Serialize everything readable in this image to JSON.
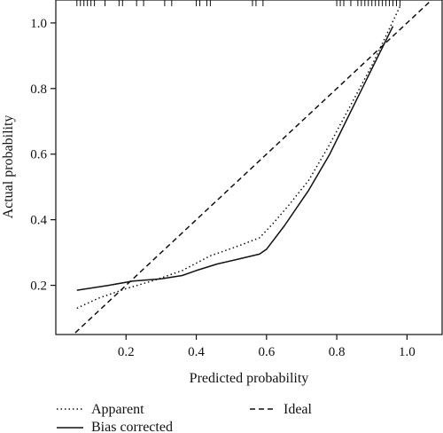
{
  "chart_data": {
    "type": "line",
    "title": "",
    "xlabel": "Predicted probability",
    "ylabel": "Actual probability",
    "xlim": [
      0.0,
      1.1
    ],
    "ylim": [
      0.05,
      1.07
    ],
    "xticks": [
      0.2,
      0.4,
      0.6,
      0.8,
      1.0
    ],
    "yticks": [
      0.2,
      0.4,
      0.6,
      0.8,
      1.0
    ],
    "xtick_labels": [
      "0.2",
      "0.4",
      "0.6",
      "0.8",
      "1.0"
    ],
    "ytick_labels": [
      "0.2",
      "0.4",
      "0.6",
      "0.8",
      "1.0"
    ],
    "grid": false,
    "legend_position": "bottom",
    "series": [
      {
        "name": "Apparent",
        "style": "dotted",
        "x": [
          0.06,
          0.12,
          0.2,
          0.28,
          0.36,
          0.44,
          0.52,
          0.58,
          0.62,
          0.66,
          0.72,
          0.78,
          0.84,
          0.9,
          0.98
        ],
        "y": [
          0.13,
          0.16,
          0.19,
          0.215,
          0.245,
          0.29,
          0.32,
          0.345,
          0.39,
          0.44,
          0.52,
          0.63,
          0.75,
          0.87,
          1.05
        ]
      },
      {
        "name": "Bias corrected",
        "style": "solid",
        "x": [
          0.06,
          0.15,
          0.22,
          0.3,
          0.36,
          0.4,
          0.46,
          0.52,
          0.58,
          0.6,
          0.65,
          0.72,
          0.78,
          0.84,
          0.9,
          0.96
        ],
        "y": [
          0.185,
          0.2,
          0.213,
          0.22,
          0.23,
          0.245,
          0.265,
          0.28,
          0.295,
          0.31,
          0.38,
          0.49,
          0.6,
          0.73,
          0.86,
          0.99
        ]
      },
      {
        "name": "Ideal",
        "style": "dashed",
        "x": [
          0.0,
          1.1
        ],
        "y": [
          0.0,
          1.1
        ]
      }
    ],
    "rug": [
      0.06,
      0.07,
      0.08,
      0.09,
      0.1,
      0.11,
      0.14,
      0.18,
      0.19,
      0.23,
      0.25,
      0.31,
      0.33,
      0.4,
      0.41,
      0.43,
      0.44,
      0.56,
      0.57,
      0.59,
      0.8,
      0.81,
      0.82,
      0.84,
      0.86,
      0.87,
      0.88,
      0.89,
      0.9,
      0.91,
      0.92,
      0.93,
      0.94,
      0.95,
      0.96,
      0.97,
      0.98
    ],
    "colors": {
      "line": "#111111",
      "background": "#ffffff"
    }
  }
}
